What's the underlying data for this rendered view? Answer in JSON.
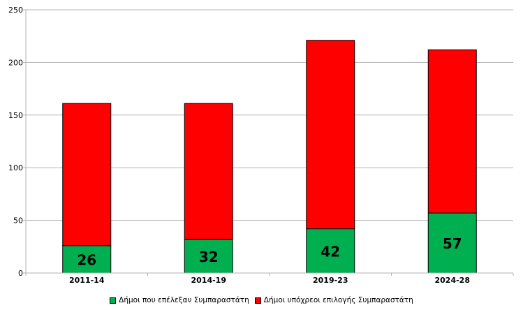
{
  "chart_data": {
    "type": "bar",
    "stacked": true,
    "categories": [
      "2011-14",
      "2014-19",
      "2019-23",
      "2024-28"
    ],
    "series": [
      {
        "name": "Δήμοι που επέλεξαν Συμπαραστάτη",
        "values": [
          26,
          32,
          42,
          57
        ],
        "color": "#00b050"
      },
      {
        "name": "Δήμοι υπόχρεοι επιλογής Συμπαραστάτη",
        "values": [
          135,
          129,
          179,
          155
        ],
        "color": "#ff0000"
      }
    ],
    "data_labels": [
      "26",
      "32",
      "42",
      "57"
    ],
    "yticks": [
      "0",
      "50",
      "100",
      "150",
      "200",
      "250"
    ],
    "ylim": [
      0,
      250
    ],
    "grid": true,
    "legend_position": "bottom"
  }
}
